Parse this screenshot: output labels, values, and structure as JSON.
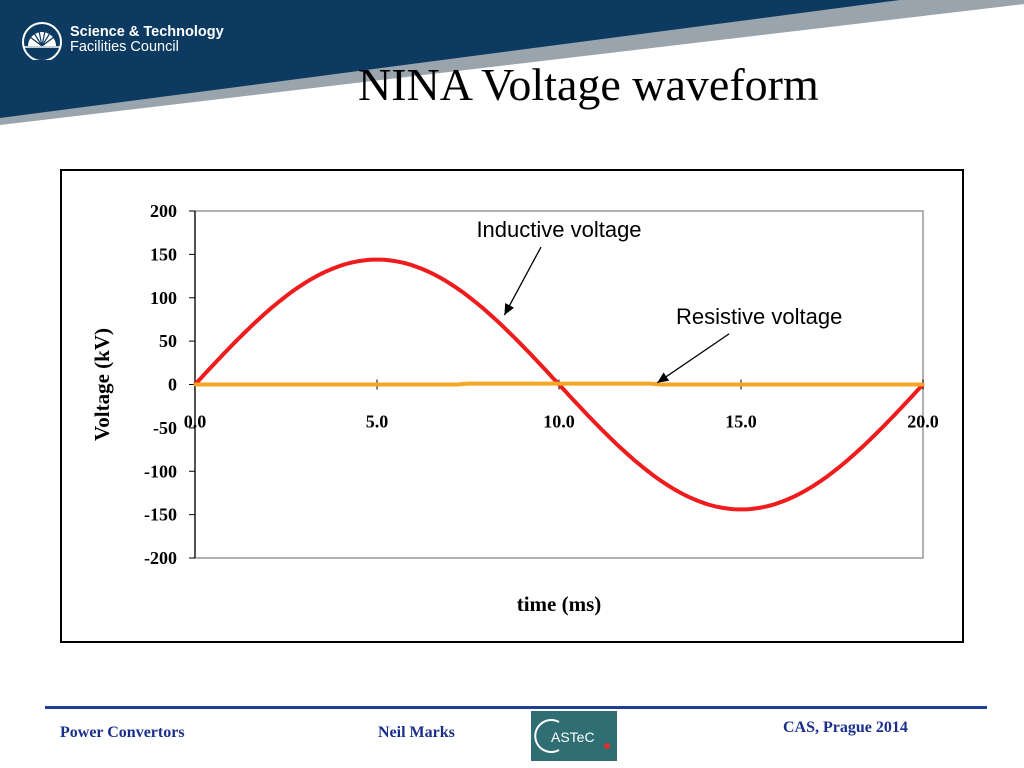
{
  "header": {
    "logo_line1": "Science & Technology",
    "logo_line2": "Facilities Council",
    "title": "NINA Voltage waveform"
  },
  "footer": {
    "left": "Power Convertors",
    "middle": "Neil Marks",
    "right": "CAS, Prague 2014",
    "logo_text": "ASTeC"
  },
  "chart_data": {
    "type": "line",
    "xlabel": "time (ms)",
    "ylabel": "Voltage (kV)",
    "xlim": [
      0,
      20
    ],
    "ylim": [
      -200,
      200
    ],
    "x_ticks": [
      "0.0",
      "5.0",
      "10.0",
      "15.0",
      "20.0"
    ],
    "y_ticks": [
      "200",
      "150",
      "100",
      "50",
      "0",
      "-50",
      "-100",
      "-150",
      "-200"
    ],
    "grid": false,
    "series": [
      {
        "color": "#ee1c1c",
        "x": [
          0,
          1,
          2,
          3,
          4,
          5,
          6,
          7,
          8,
          9,
          10,
          11,
          12,
          13,
          14,
          15,
          16,
          17,
          18,
          19,
          20
        ],
        "values": [
          0,
          44,
          85,
          117,
          137,
          144,
          137,
          117,
          85,
          44,
          0,
          -44,
          -85,
          -117,
          -137,
          -144,
          -137,
          -117,
          -85,
          -44,
          0
        ]
      },
      {
        "color": "#f5a623",
        "x": [
          0,
          7.2,
          7.5,
          10,
          12.5,
          12.8,
          20
        ],
        "values": [
          0,
          0,
          1,
          1,
          1,
          0,
          0
        ]
      }
    ],
    "annotations": [
      {
        "text": "Inductive voltage",
        "x": 10,
        "y": 170,
        "arrow_to": [
          8.5,
          80
        ]
      },
      {
        "text": "Resistive voltage",
        "x": 15.5,
        "y": 70,
        "arrow_to": [
          12.7,
          2
        ]
      }
    ]
  },
  "colors": {
    "header_navy": "#0d3a61",
    "header_band": "#9aa4ad",
    "footer_blue": "#1a2f8c"
  }
}
